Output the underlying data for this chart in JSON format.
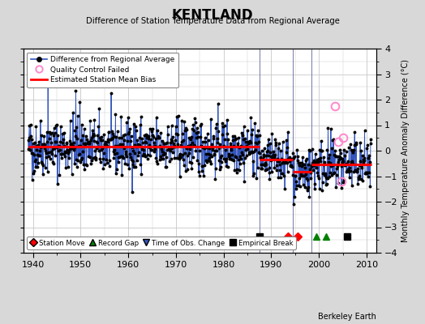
{
  "title": "KENTLAND",
  "subtitle": "Difference of Station Temperature Data from Regional Average",
  "ylabel": "Monthly Temperature Anomaly Difference (°C)",
  "xlabel_bottom": "Berkeley Earth",
  "xlim": [
    1938,
    2012
  ],
  "ylim": [
    -4,
    4
  ],
  "background_color": "#d8d8d8",
  "plot_bg_color": "#ffffff",
  "grid_color": "#c8c8c8",
  "line_color": "#3355bb",
  "bias_color": "#ff0000",
  "qc_color": "#ff88cc",
  "segments": [
    {
      "xstart": 1939.0,
      "xend": 1987.5,
      "bias": 0.15
    },
    {
      "xstart": 1987.5,
      "xend": 1994.5,
      "bias": -0.35
    },
    {
      "xstart": 1994.5,
      "xend": 1998.5,
      "bias": -0.82
    },
    {
      "xstart": 1998.5,
      "xend": 2011.0,
      "bias": -0.55
    }
  ],
  "vertical_lines": [
    1987.5,
    1994.5,
    1998.5
  ],
  "event_markers": {
    "empirical_breaks": [
      1987.5,
      2006.0
    ],
    "station_moves": [
      1993.5,
      1995.5
    ],
    "record_gaps": [
      1999.5,
      2001.5
    ],
    "obs_changes": []
  },
  "qc_points": {
    "x": [
      2003.3,
      2004.0,
      2004.7,
      2005.1
    ],
    "y": [
      1.75,
      0.35,
      -1.2,
      0.5
    ]
  },
  "seed": 42
}
